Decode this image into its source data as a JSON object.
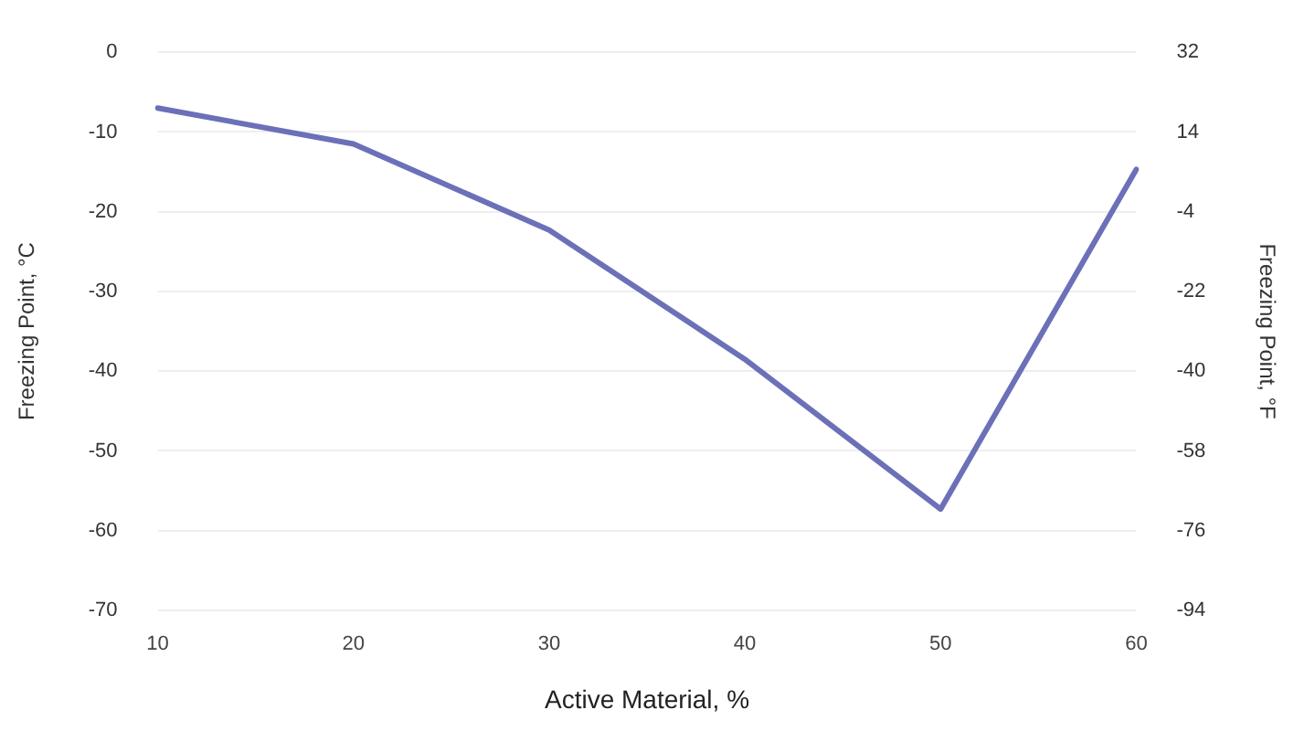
{
  "chart_data": {
    "type": "line",
    "xlabel": "Active Material, %",
    "ylabel": "Freezing Point, °C",
    "y2label": "Freezing Point, °F",
    "categories": [
      "10",
      "20",
      "30",
      "40",
      "50",
      "60"
    ],
    "series": [
      {
        "color": "#6b70b8",
        "values": [
          -7,
          -11.5,
          -22.3,
          -38.5,
          -57.3,
          -14.7
        ]
      }
    ],
    "ylim": [
      -70,
      0
    ],
    "yticks": [
      0,
      -10,
      -20,
      -30,
      -40,
      -50,
      -60,
      -70
    ],
    "y2lim": [
      -94,
      32
    ],
    "y2ticks": [
      32,
      14,
      -4,
      -22,
      -40,
      -58,
      -76,
      -94
    ],
    "grid": "y",
    "legend": false,
    "marker": "none",
    "line_style": "solid"
  }
}
